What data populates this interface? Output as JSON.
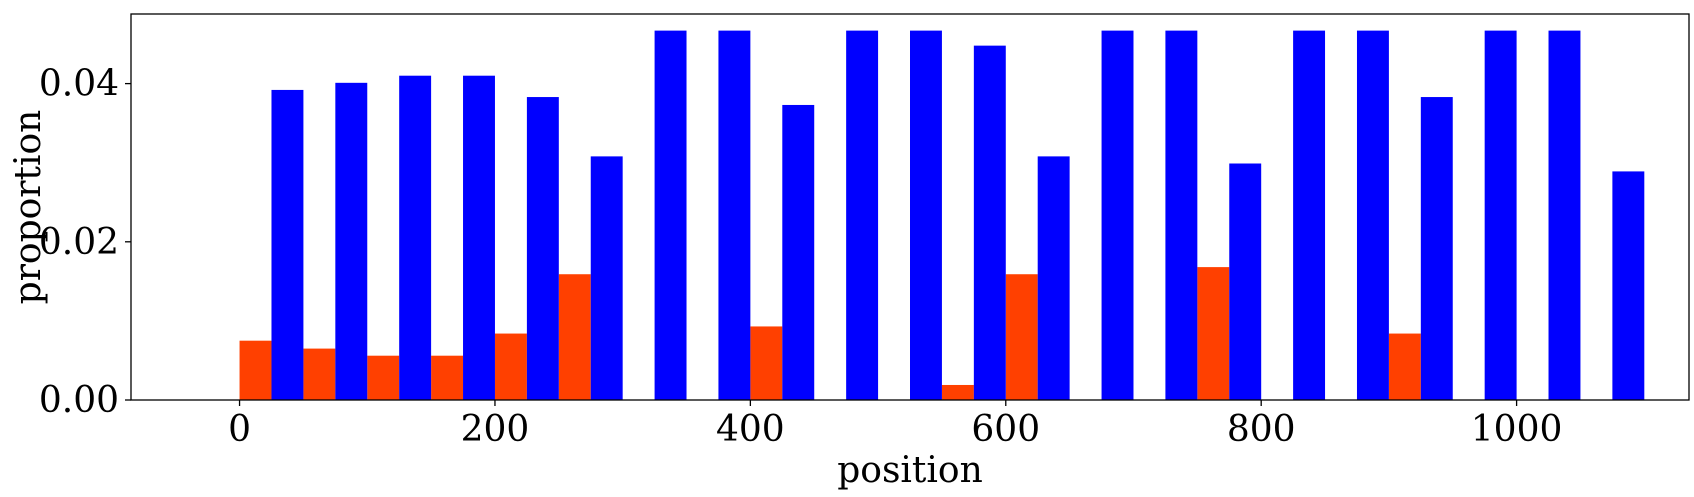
{
  "chart_data": {
    "type": "bar",
    "xlabel": "position",
    "ylabel": "proportion",
    "xlim": [
      -85,
      1135
    ],
    "ylim": [
      0,
      0.0488
    ],
    "grid": false,
    "legend": "none",
    "bar_width": 25,
    "x_ticks": [
      0,
      200,
      400,
      600,
      800,
      1000
    ],
    "x_tick_labels": [
      "0",
      "200",
      "400",
      "600",
      "800",
      "1000"
    ],
    "y_ticks": [
      0,
      0.02,
      0.04
    ],
    "y_tick_labels": [
      "0.00",
      "0.02",
      "0.04"
    ],
    "series": [
      {
        "color": "#ff4000",
        "x": [
          0,
          50,
          100,
          150,
          200,
          250,
          400,
          550,
          600,
          750,
          900
        ],
        "values": [
          0.0075,
          0.0065,
          0.0056,
          0.0056,
          0.0084,
          0.0159,
          0.0093,
          0.0019,
          0.0159,
          0.0168,
          0.0084
        ]
      },
      {
        "color": "#0000ff",
        "x": [
          25,
          75,
          125,
          175,
          225,
          275,
          325,
          375,
          425,
          475,
          525,
          575,
          625,
          675,
          725,
          775,
          825,
          875,
          925,
          975,
          1025,
          1075
        ],
        "values": [
          0.0392,
          0.0401,
          0.041,
          0.041,
          0.0383,
          0.0308,
          0.0467,
          0.0467,
          0.0373,
          0.0467,
          0.0467,
          0.0448,
          0.0308,
          0.0467,
          0.0467,
          0.0299,
          0.0467,
          0.0467,
          0.0383,
          0.0467,
          0.0467,
          0.0289
        ]
      }
    ]
  }
}
